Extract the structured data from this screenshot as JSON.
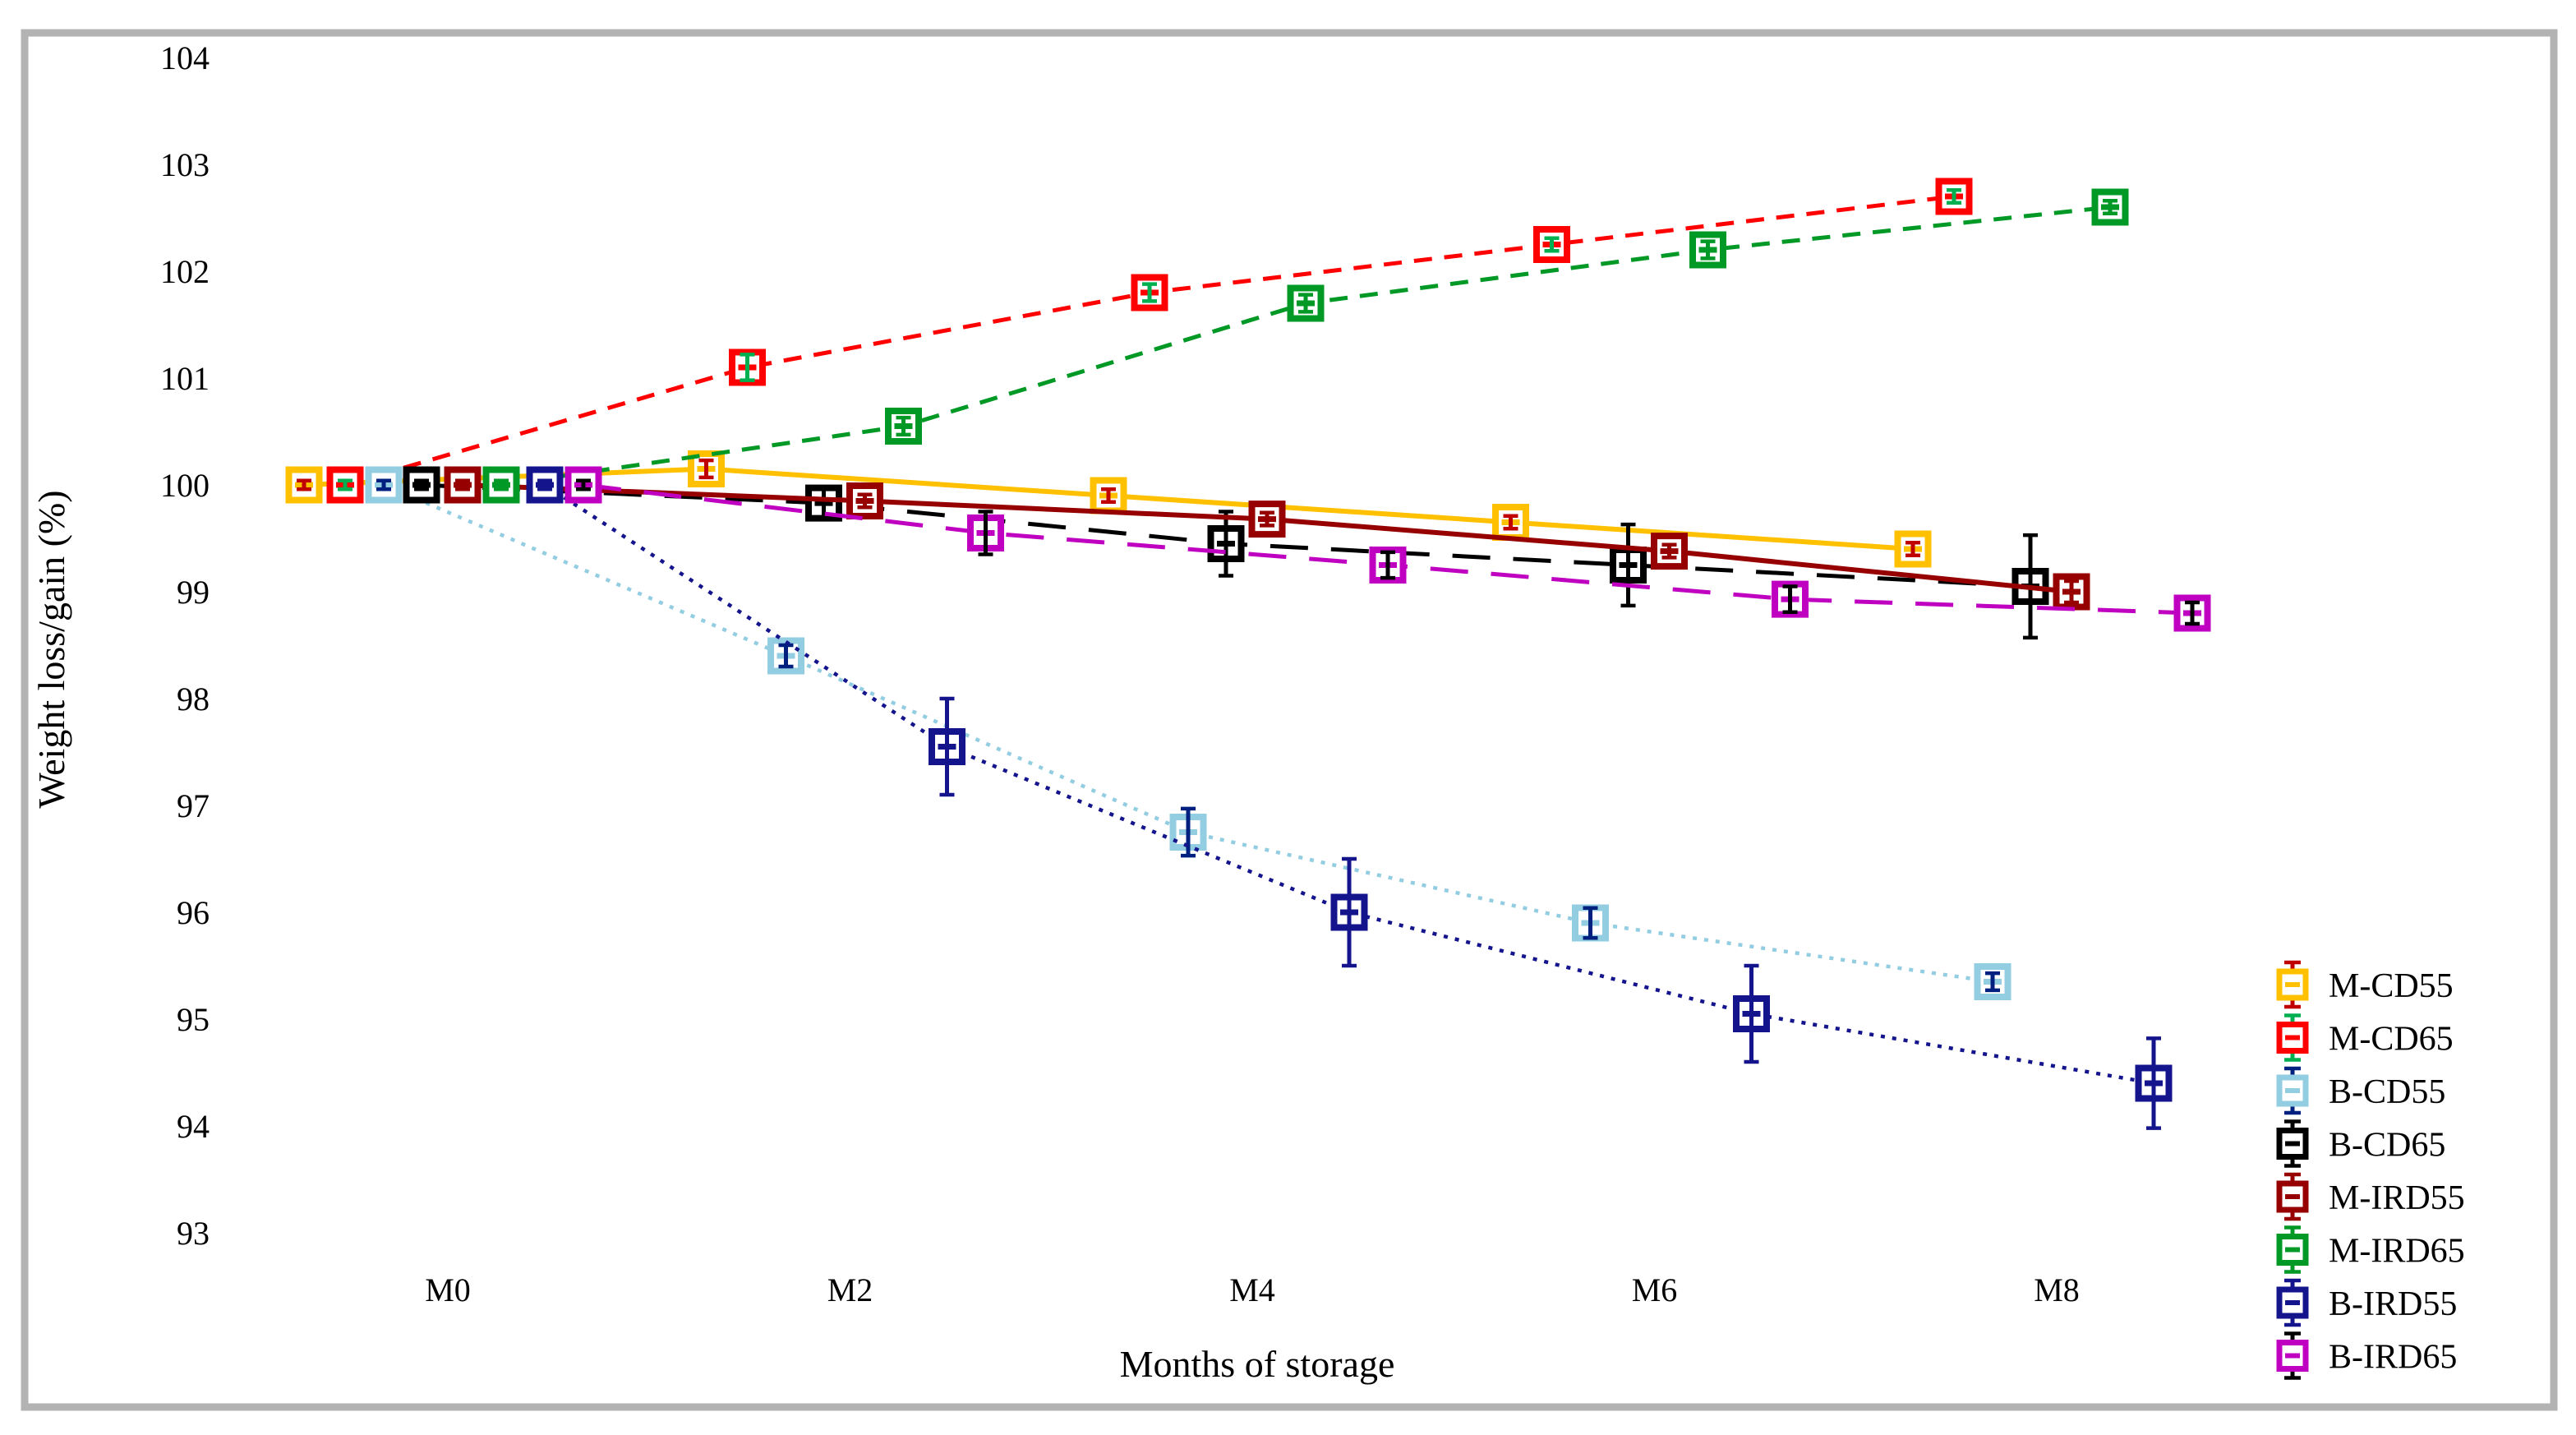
{
  "figure": {
    "border_color": "#b3b3b3",
    "background": "#ffffff"
  },
  "chart_data": {
    "type": "line",
    "title": "",
    "xlabel": "Months of storage",
    "ylabel": "Weight loss/gain (%)",
    "grid": false,
    "legend_position": "right",
    "x_tick_labels": [
      "M0",
      "M2",
      "M4",
      "M6",
      "M8"
    ],
    "x_values": [
      0,
      2,
      4,
      6,
      8
    ],
    "y_axis": {
      "min": 93,
      "max": 104,
      "step": 1
    },
    "ylim": [
      92.6,
      104.4
    ],
    "series": [
      {
        "name": "M-CD55",
        "color": "#FFC000",
        "error_color": "#C00000",
        "line_style": "solid",
        "marker": "open-square",
        "values": [
          100,
          100.15,
          99.9,
          99.65,
          99.4
        ],
        "errors": [
          0.04,
          0.08,
          0.06,
          0.06,
          0.06
        ]
      },
      {
        "name": "M-CD65",
        "color": "#FF0000",
        "error_color": "#00B050",
        "line_style": "dashed",
        "marker": "open-square",
        "values": [
          100,
          101.1,
          101.8,
          102.25,
          102.7
        ],
        "errors": [
          0.04,
          0.12,
          0.08,
          0.06,
          0.06
        ]
      },
      {
        "name": "B-CD55",
        "color": "#93CDE1",
        "error_color": "#002080",
        "line_style": "dotted",
        "marker": "open-square",
        "values": [
          100,
          98.4,
          96.75,
          95.9,
          95.35
        ],
        "errors": [
          0.04,
          0.1,
          0.22,
          0.14,
          0.08
        ]
      },
      {
        "name": "B-CD65",
        "color": "#000000",
        "error_color": "#000000",
        "line_style": "long-dashed",
        "marker": "open-square",
        "values": [
          100,
          99.83,
          99.45,
          99.25,
          99.05
        ],
        "errors": [
          0.04,
          0.15,
          0.3,
          0.38,
          0.48
        ]
      },
      {
        "name": "M-IRD55",
        "color": "#960000",
        "error_color": "#960000",
        "line_style": "solid",
        "marker": "open-square",
        "values": [
          100,
          99.85,
          99.68,
          99.38,
          99.0
        ],
        "errors": [
          0.04,
          0.06,
          0.06,
          0.06,
          0.1
        ]
      },
      {
        "name": "M-IRD65",
        "color": "#009926",
        "error_color": "#009926",
        "line_style": "dashed",
        "marker": "open-square",
        "values": [
          100,
          100.55,
          101.7,
          102.2,
          102.6
        ],
        "errors": [
          0.04,
          0.08,
          0.08,
          0.08,
          0.06
        ]
      },
      {
        "name": "B-IRD55",
        "color": "#14148C",
        "error_color": "#14148C",
        "line_style": "dotted",
        "marker": "open-square",
        "values": [
          100,
          97.55,
          96.0,
          95.05,
          94.4
        ],
        "errors": [
          0.04,
          0.45,
          0.5,
          0.45,
          0.42
        ]
      },
      {
        "name": "B-IRD65",
        "color": "#C000C0",
        "error_color": "#000000",
        "line_style": "long-dashed",
        "marker": "open-square",
        "values": [
          100,
          99.55,
          99.25,
          98.93,
          98.8
        ],
        "errors": [
          0.04,
          0.2,
          0.12,
          0.12,
          0.1
        ]
      }
    ]
  }
}
